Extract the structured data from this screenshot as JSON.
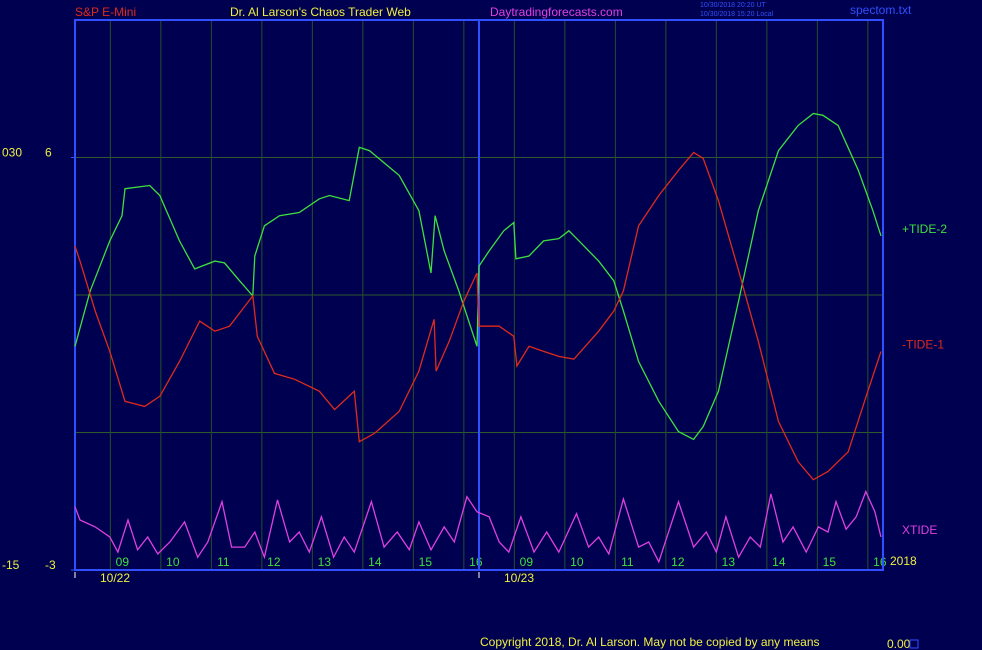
{
  "chart_data": {
    "type": "line",
    "instrument": "S&P E-Mini",
    "title": "Dr. Al Larson's Chaos Trader Web",
    "site": "Daytradingforecasts.com",
    "timestamps": [
      "10/30/2018 20:20 UT",
      "10/30/2018 15:20 Local"
    ],
    "file": "spectom.txt",
    "year": "2018",
    "copyright": "Copyright 2018, Dr. Al Larson. May not be copied by any means",
    "status": "0.00",
    "xlim": [
      0,
      16
    ],
    "ylim": [
      -3,
      9
    ],
    "yticks": [
      6,
      -3
    ],
    "ygrid": [
      0,
      3,
      6
    ],
    "y2lim": [
      -15,
      45
    ],
    "y2ticks": [
      {
        "value": 30,
        "label": "030"
      },
      -15
    ],
    "xticks": [
      {
        "value": 0.7,
        "label": "09"
      },
      {
        "value": 1.7,
        "label": "10"
      },
      {
        "value": 2.7,
        "label": "11"
      },
      {
        "value": 3.7,
        "label": "12"
      },
      {
        "value": 4.7,
        "label": "13"
      },
      {
        "value": 5.7,
        "label": "14"
      },
      {
        "value": 6.7,
        "label": "15"
      },
      {
        "value": 7.7,
        "label": "16"
      },
      {
        "value": 8.7,
        "label": "09"
      },
      {
        "value": 9.7,
        "label": "10"
      },
      {
        "value": 10.7,
        "label": "11"
      },
      {
        "value": 11.7,
        "label": "12"
      },
      {
        "value": 12.7,
        "label": "13"
      },
      {
        "value": 13.7,
        "label": "14"
      },
      {
        "value": 14.7,
        "label": "15"
      },
      {
        "value": 15.7,
        "label": "16"
      }
    ],
    "days": [
      {
        "value": 0,
        "label": "10/22"
      },
      {
        "value": 8,
        "label": "10/23"
      }
    ],
    "grid": true,
    "series": [
      {
        "name": "+TIDE-2",
        "color": "#3ee03e",
        "x": [
          0,
          0.3,
          0.69,
          0.93,
          0.99,
          1.48,
          1.68,
          2.07,
          2.37,
          2.77,
          2.96,
          3.26,
          3.52,
          3.56,
          3.75,
          4.05,
          4.44,
          4.84,
          5.04,
          5.43,
          5.63,
          5.83,
          6.42,
          6.81,
          7.05,
          7.13,
          7.31,
          7.6,
          7.96,
          8,
          8.2,
          8.49,
          8.69,
          8.73,
          8.99,
          9.28,
          9.58,
          9.78,
          9.98,
          10.37,
          10.67,
          10.86,
          11.16,
          11.56,
          11.95,
          12.25,
          12.44,
          12.74,
          13.14,
          13.53,
          13.93,
          14.32,
          14.62,
          14.81,
          15.11,
          15.51,
          15.8,
          15.96
        ],
        "values": [
          1.88,
          3.09,
          4.18,
          4.73,
          5.32,
          5.39,
          5.17,
          4.18,
          3.57,
          3.74,
          3.7,
          3.31,
          2.98,
          3.85,
          4.51,
          4.73,
          4.8,
          5.1,
          5.17,
          5.06,
          6.22,
          6.15,
          5.61,
          4.84,
          3.48,
          4.73,
          3.96,
          3.09,
          1.88,
          3.63,
          3.96,
          4.4,
          4.58,
          3.79,
          3.85,
          4.18,
          4.23,
          4.4,
          4.18,
          3.74,
          3.31,
          2.65,
          1.55,
          0.68,
          0.02,
          -0.15,
          0.13,
          0.9,
          2.87,
          4.84,
          6.15,
          6.7,
          6.96,
          6.92,
          6.7,
          5.72,
          4.84,
          4.29
        ]
      },
      {
        "name": "-TIDE-1",
        "color": "#e02a1a",
        "x": [
          0,
          0.1,
          0.4,
          0.69,
          0.99,
          1.38,
          1.68,
          2.07,
          2.47,
          2.77,
          3.06,
          3.52,
          3.61,
          3.95,
          4.35,
          4.84,
          5.14,
          5.53,
          5.63,
          5.93,
          6.42,
          6.81,
          7.11,
          7.15,
          7.41,
          7.7,
          7.96,
          8,
          8.4,
          8.69,
          8.75,
          8.99,
          9.28,
          9.58,
          9.88,
          10.37,
          10.67,
          10.86,
          11.16,
          11.56,
          11.95,
          12.25,
          12.44,
          12.74,
          13.14,
          13.53,
          13.93,
          14.32,
          14.62,
          14.91,
          15.31,
          15.7,
          15.96
        ],
        "values": [
          4.07,
          3.74,
          2.65,
          1.77,
          0.68,
          0.57,
          0.79,
          1.55,
          2.43,
          2.21,
          2.32,
          2.98,
          2.1,
          1.29,
          1.16,
          0.9,
          0.5,
          0.9,
          -0.2,
          -0.02,
          0.46,
          1.34,
          2.47,
          1.34,
          1.99,
          2.87,
          3.48,
          2.32,
          2.32,
          2.1,
          1.45,
          1.88,
          1.77,
          1.66,
          1.6,
          2.21,
          2.65,
          3.09,
          4.51,
          5.17,
          5.72,
          6.11,
          5.98,
          5.06,
          3.53,
          1.99,
          0.24,
          -0.64,
          -1.03,
          -0.85,
          -0.42,
          0.9,
          1.77
        ]
      },
      {
        "name": "XTIDE",
        "color": "#e040e0",
        "x": [
          0,
          0.1,
          0.4,
          0.69,
          0.85,
          1.05,
          1.24,
          1.44,
          1.64,
          1.88,
          2.17,
          2.43,
          2.63,
          2.91,
          3.1,
          3.36,
          3.56,
          3.75,
          4.01,
          4.25,
          4.44,
          4.64,
          4.88,
          5.12,
          5.33,
          5.53,
          5.87,
          6.12,
          6.38,
          6.62,
          6.81,
          7.05,
          7.31,
          7.51,
          7.76,
          7.96,
          8.2,
          8.4,
          8.59,
          8.83,
          9.09,
          9.34,
          9.58,
          9.93,
          10.17,
          10.37,
          10.57,
          10.86,
          11.16,
          11.36,
          11.56,
          11.95,
          12.25,
          12.5,
          12.7,
          12.89,
          13.14,
          13.37,
          13.57,
          13.78,
          14.02,
          14.22,
          14.48,
          14.72,
          14.91,
          15.07,
          15.27,
          15.47,
          15.66,
          15.84,
          15.96
        ],
        "values": [
          -1.62,
          -1.91,
          -2.06,
          -2.28,
          -2.61,
          -1.91,
          -2.56,
          -2.28,
          -2.65,
          -2.39,
          -1.95,
          -2.72,
          -2.39,
          -1.51,
          -2.5,
          -2.5,
          -2.17,
          -2.72,
          -1.47,
          -2.39,
          -2.17,
          -2.61,
          -1.84,
          -2.72,
          -2.28,
          -2.61,
          -1.51,
          -2.5,
          -2.17,
          -2.56,
          -1.95,
          -2.56,
          -2.06,
          -2.39,
          -1.4,
          -1.73,
          -1.84,
          -2.39,
          -2.61,
          -1.84,
          -2.61,
          -2.17,
          -2.61,
          -1.77,
          -2.5,
          -2.28,
          -2.65,
          -1.45,
          -2.5,
          -2.39,
          -2.82,
          -1.51,
          -2.5,
          -2.17,
          -2.61,
          -1.84,
          -2.72,
          -2.28,
          -2.5,
          -1.34,
          -2.39,
          -2.06,
          -2.61,
          -2.06,
          -2.17,
          -1.51,
          -2.11,
          -1.84,
          -1.29,
          -1.73,
          -2.28
        ]
      }
    ]
  }
}
